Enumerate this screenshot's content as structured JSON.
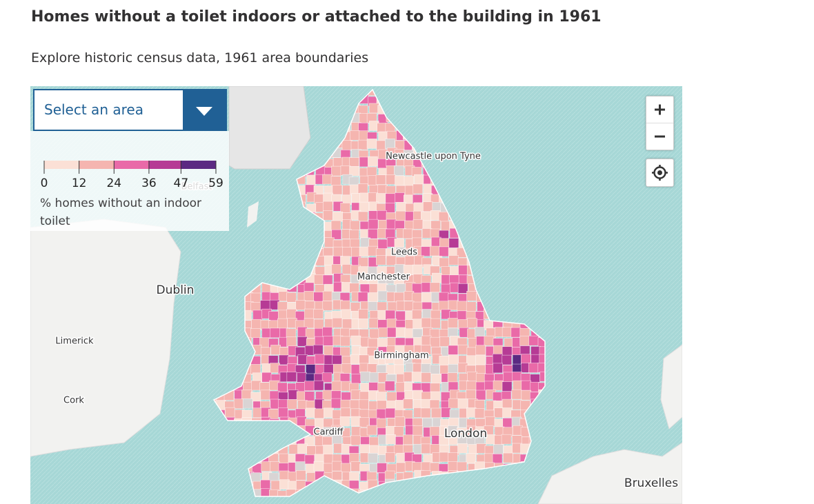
{
  "header": {
    "title": "Homes without a toilet indoors or attached to the building in 1961",
    "subtitle": "Explore historic census data, 1961 area boundaries"
  },
  "select": {
    "placeholder": "Select an area"
  },
  "legend": {
    "breaks": [
      0,
      12,
      24,
      36,
      47,
      59
    ],
    "colors": [
      "#fbe0d6",
      "#f5b5b0",
      "#e96aa8",
      "#b63b95",
      "#5b2a82"
    ],
    "label": "% homes without an indoor toilet"
  },
  "places": [
    {
      "name": "Newcastle upon Tyne"
    },
    {
      "name": "Leeds"
    },
    {
      "name": "Manchester"
    },
    {
      "name": "Dublin"
    },
    {
      "name": "Limerick"
    },
    {
      "name": "Birmingham"
    },
    {
      "name": "Cork"
    },
    {
      "name": "Cardiff"
    },
    {
      "name": "London"
    },
    {
      "name": "Bruxelles"
    },
    {
      "name": "Belfast"
    }
  ]
}
